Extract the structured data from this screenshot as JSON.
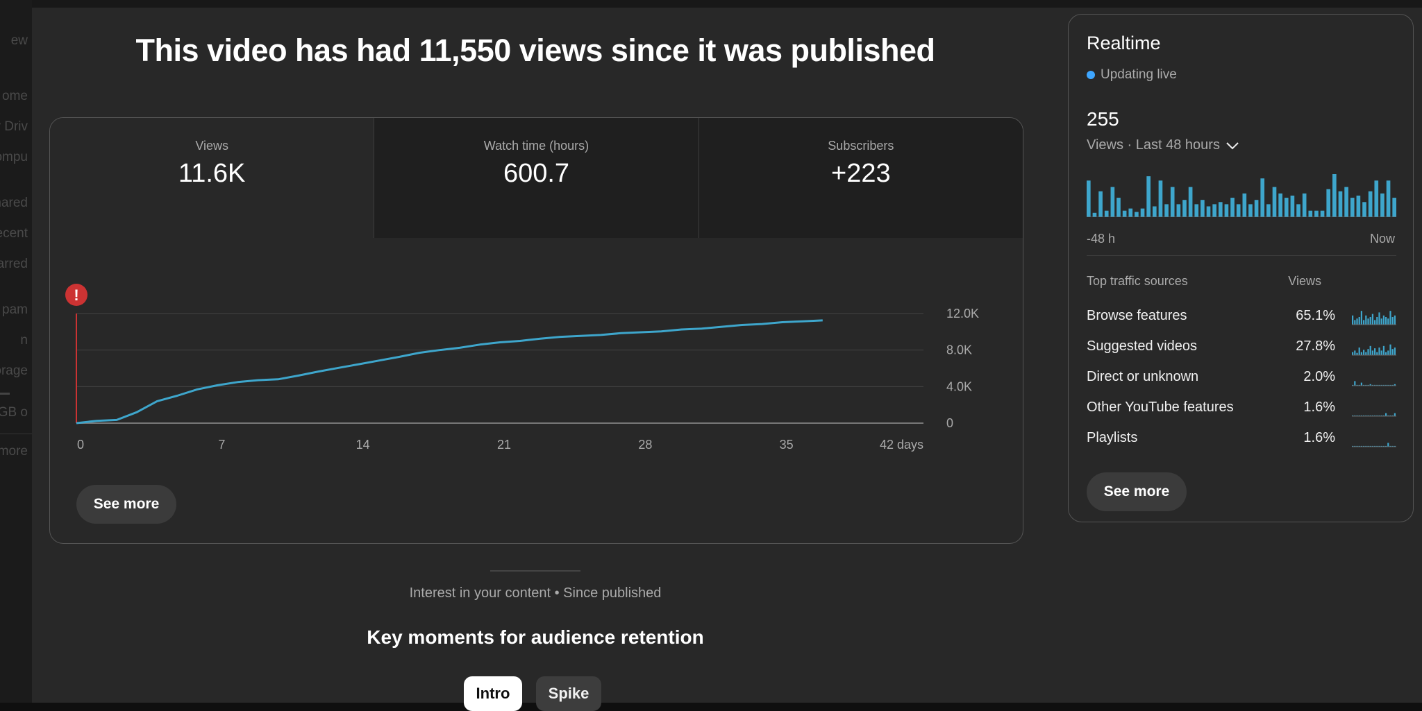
{
  "sidebar": {
    "items": [
      "ew",
      "ome",
      "y Driv",
      "ompu",
      "hared",
      "ecent",
      "tarred",
      "pam",
      "n",
      "torage",
      "GB o",
      "more"
    ]
  },
  "headline": "This video has had 11,550 views since it was published",
  "metrics": [
    {
      "label": "Views",
      "value": "11.6K"
    },
    {
      "label": "Watch time (hours)",
      "value": "600.7"
    },
    {
      "label": "Subscribers",
      "value": "+223"
    }
  ],
  "chart_data": {
    "type": "line",
    "xlabel": "",
    "ylabel": "",
    "x_ticks": [
      "0",
      "7",
      "14",
      "21",
      "28",
      "35",
      "42 days"
    ],
    "y_ticks": [
      "12.0K",
      "8.0K",
      "4.0K",
      "0"
    ],
    "xlim": [
      0,
      42
    ],
    "ylim": [
      0,
      12000
    ],
    "grid": true,
    "color": "#3ea6cc",
    "marker_color": "#cc3333",
    "series": [
      {
        "x": [
          0,
          1,
          2,
          3,
          4,
          5,
          6,
          7,
          8,
          9,
          10,
          11,
          12,
          13,
          14,
          15,
          16,
          17,
          18,
          19,
          20,
          21,
          22,
          23,
          24,
          25,
          26,
          27,
          28,
          29,
          30,
          31,
          32,
          33,
          34,
          35,
          36,
          37
        ],
        "y": [
          0,
          250,
          350,
          1200,
          2400,
          3000,
          3700,
          4150,
          4500,
          4700,
          4800,
          5200,
          5650,
          6050,
          6450,
          6850,
          7250,
          7700,
          8000,
          8250,
          8600,
          8850,
          9000,
          9250,
          9450,
          9550,
          9650,
          9850,
          9950,
          10050,
          10250,
          10350,
          10550,
          10750,
          10850,
          11050,
          11150,
          11250
        ]
      }
    ]
  },
  "card_see_more": "See more",
  "interest": "Interest in your content • Since published",
  "key_moments": "Key moments for audience retention",
  "chips": [
    "Intro",
    "Spike"
  ],
  "realtime": {
    "title": "Realtime",
    "live": "Updating live",
    "count": "255",
    "period": "Views · Last 48 hours",
    "bars": [
      0.85,
      0.1,
      0.6,
      0.15,
      0.7,
      0.45,
      0.15,
      0.2,
      0.12,
      0.2,
      0.95,
      0.25,
      0.85,
      0.3,
      0.7,
      0.3,
      0.4,
      0.7,
      0.3,
      0.4,
      0.25,
      0.3,
      0.35,
      0.3,
      0.45,
      0.3,
      0.55,
      0.3,
      0.4,
      0.9,
      0.3,
      0.7,
      0.55,
      0.45,
      0.5,
      0.3,
      0.55,
      0.15,
      0.15,
      0.15,
      0.65,
      1.0,
      0.6,
      0.7,
      0.45,
      0.5,
      0.35,
      0.6,
      0.85,
      0.55,
      0.85,
      0.45
    ],
    "bar_color": "#3ea6cc",
    "axis_left": "-48 h",
    "axis_right": "Now",
    "th_source": "Top traffic sources",
    "th_views": "Views",
    "sources": [
      {
        "name": "Browse features",
        "pct": "65.1%",
        "spark": [
          0.6,
          0.3,
          0.4,
          0.5,
          0.9,
          0.3,
          0.6,
          0.4,
          0.5,
          0.7,
          0.3,
          0.5,
          0.8,
          0.4,
          0.6,
          0.5,
          0.4,
          0.9,
          0.5,
          0.6
        ]
      },
      {
        "name": "Suggested videos",
        "pct": "27.8%",
        "spark": [
          0.2,
          0.3,
          0.15,
          0.5,
          0.2,
          0.35,
          0.2,
          0.4,
          0.6,
          0.3,
          0.45,
          0.2,
          0.5,
          0.3,
          0.6,
          0.2,
          0.3,
          0.7,
          0.4,
          0.5
        ]
      },
      {
        "name": "Direct or unknown",
        "pct": "2.0%",
        "spark": [
          0.05,
          0.3,
          0.05,
          0.05,
          0.2,
          0.05,
          0.05,
          0.05,
          0.1,
          0.05,
          0.05,
          0.05,
          0.05,
          0.05,
          0.05,
          0.05,
          0.05,
          0.05,
          0.05,
          0.1
        ]
      },
      {
        "name": "Other YouTube features",
        "pct": "1.6%",
        "spark": [
          0.05,
          0.05,
          0.05,
          0.05,
          0.05,
          0.05,
          0.05,
          0.05,
          0.05,
          0.05,
          0.05,
          0.05,
          0.05,
          0.05,
          0.05,
          0.2,
          0.05,
          0.05,
          0.05,
          0.2
        ]
      },
      {
        "name": "Playlists",
        "pct": "1.6%",
        "spark": [
          0.05,
          0.05,
          0.05,
          0.05,
          0.05,
          0.05,
          0.05,
          0.05,
          0.05,
          0.05,
          0.05,
          0.05,
          0.05,
          0.05,
          0.05,
          0.05,
          0.25,
          0.05,
          0.05,
          0.05
        ]
      }
    ],
    "see_more": "See more"
  }
}
